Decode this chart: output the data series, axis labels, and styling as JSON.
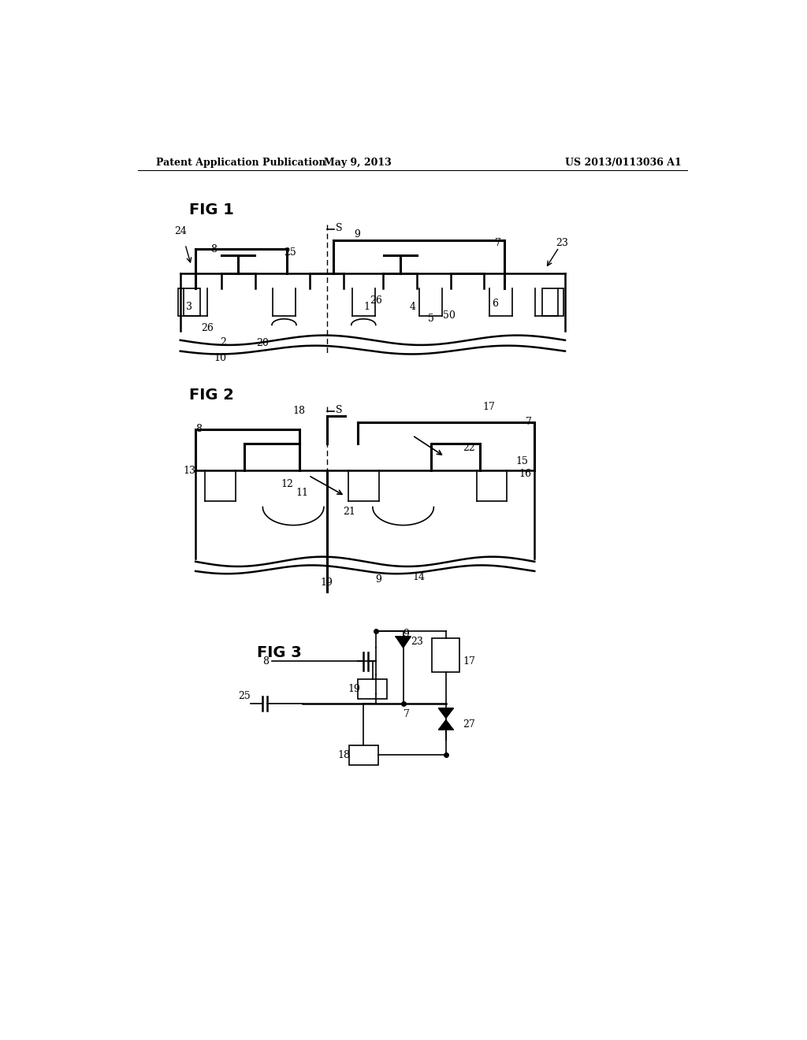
{
  "bg_color": "#ffffff",
  "header_left": "Patent Application Publication",
  "header_mid": "May 9, 2013",
  "header_right": "US 2013/0113036 A1",
  "fig1_label": "FIG 1",
  "fig2_label": "FIG 2",
  "fig3_label": "FIG 3"
}
